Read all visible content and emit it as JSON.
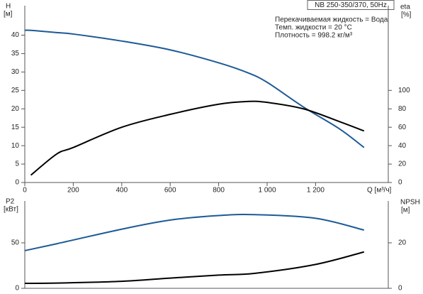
{
  "chart_data": [
    {
      "type": "line",
      "title": "NB 250-350/370, 50Hz",
      "annotations": [
        "Перекачиваемая жидкость = Вода",
        "Темп. жидкости = 20 °C",
        "Плотность = 998.2 кг/м³"
      ],
      "xlabel": "Q [м³/ч]",
      "ylabel": "H",
      "yunit": "[м]",
      "y2label": "eta",
      "y2unit": "[%]",
      "x": [
        0,
        25,
        132,
        200,
        400,
        600,
        800,
        920,
        1000,
        1150,
        1300,
        1400
      ],
      "xlim": [
        0,
        1500
      ],
      "xticks": [
        0,
        200,
        400,
        600,
        800,
        {
          "value": 1000,
          "label": "1 000"
        },
        {
          "value": 1200,
          "label": "1 200"
        }
      ],
      "ylim": [
        0,
        48
      ],
      "yticks": [
        0,
        5,
        10,
        15,
        20,
        25,
        30,
        35,
        40
      ],
      "y2lim": [
        0,
        192
      ],
      "y2ticks": [
        0,
        20,
        40,
        60,
        80,
        100
      ],
      "series": [
        {
          "color": "#1d5a96",
          "values": [
            41.3,
            41.3,
            40.7,
            40.3,
            38.4,
            36,
            32.5,
            29.8,
            27.2,
            20.5,
            14.5,
            9.5
          ]
        },
        {
          "color": "#000000",
          "axis": "y2",
          "values": [
            null,
            8,
            31,
            38,
            60,
            74,
            85,
            88,
            87,
            80,
            66,
            56
          ]
        }
      ]
    },
    {
      "type": "line",
      "ylabel": "P2",
      "yunit": "[кВт]",
      "y2label": "NPSH",
      "y2unit": "[м]",
      "x": [
        0,
        132,
        400,
        600,
        800,
        950,
        1200,
        1400
      ],
      "xlim": [
        0,
        1500
      ],
      "ylim": [
        0,
        96
      ],
      "yticks": [
        0,
        50
      ],
      "y2lim": [
        0,
        38.4
      ],
      "y2ticks": [
        0,
        20
      ],
      "series": [
        {
          "color": "#1d5a96",
          "values": [
            41.4,
            49,
            65,
            75,
            80,
            81,
            77,
            64
          ]
        },
        {
          "color": "#000000",
          "axis": "y2",
          "values": [
            2.2,
            2.3,
            3.1,
            4.5,
            5.8,
            6.6,
            10.5,
            16
          ]
        }
      ]
    }
  ]
}
